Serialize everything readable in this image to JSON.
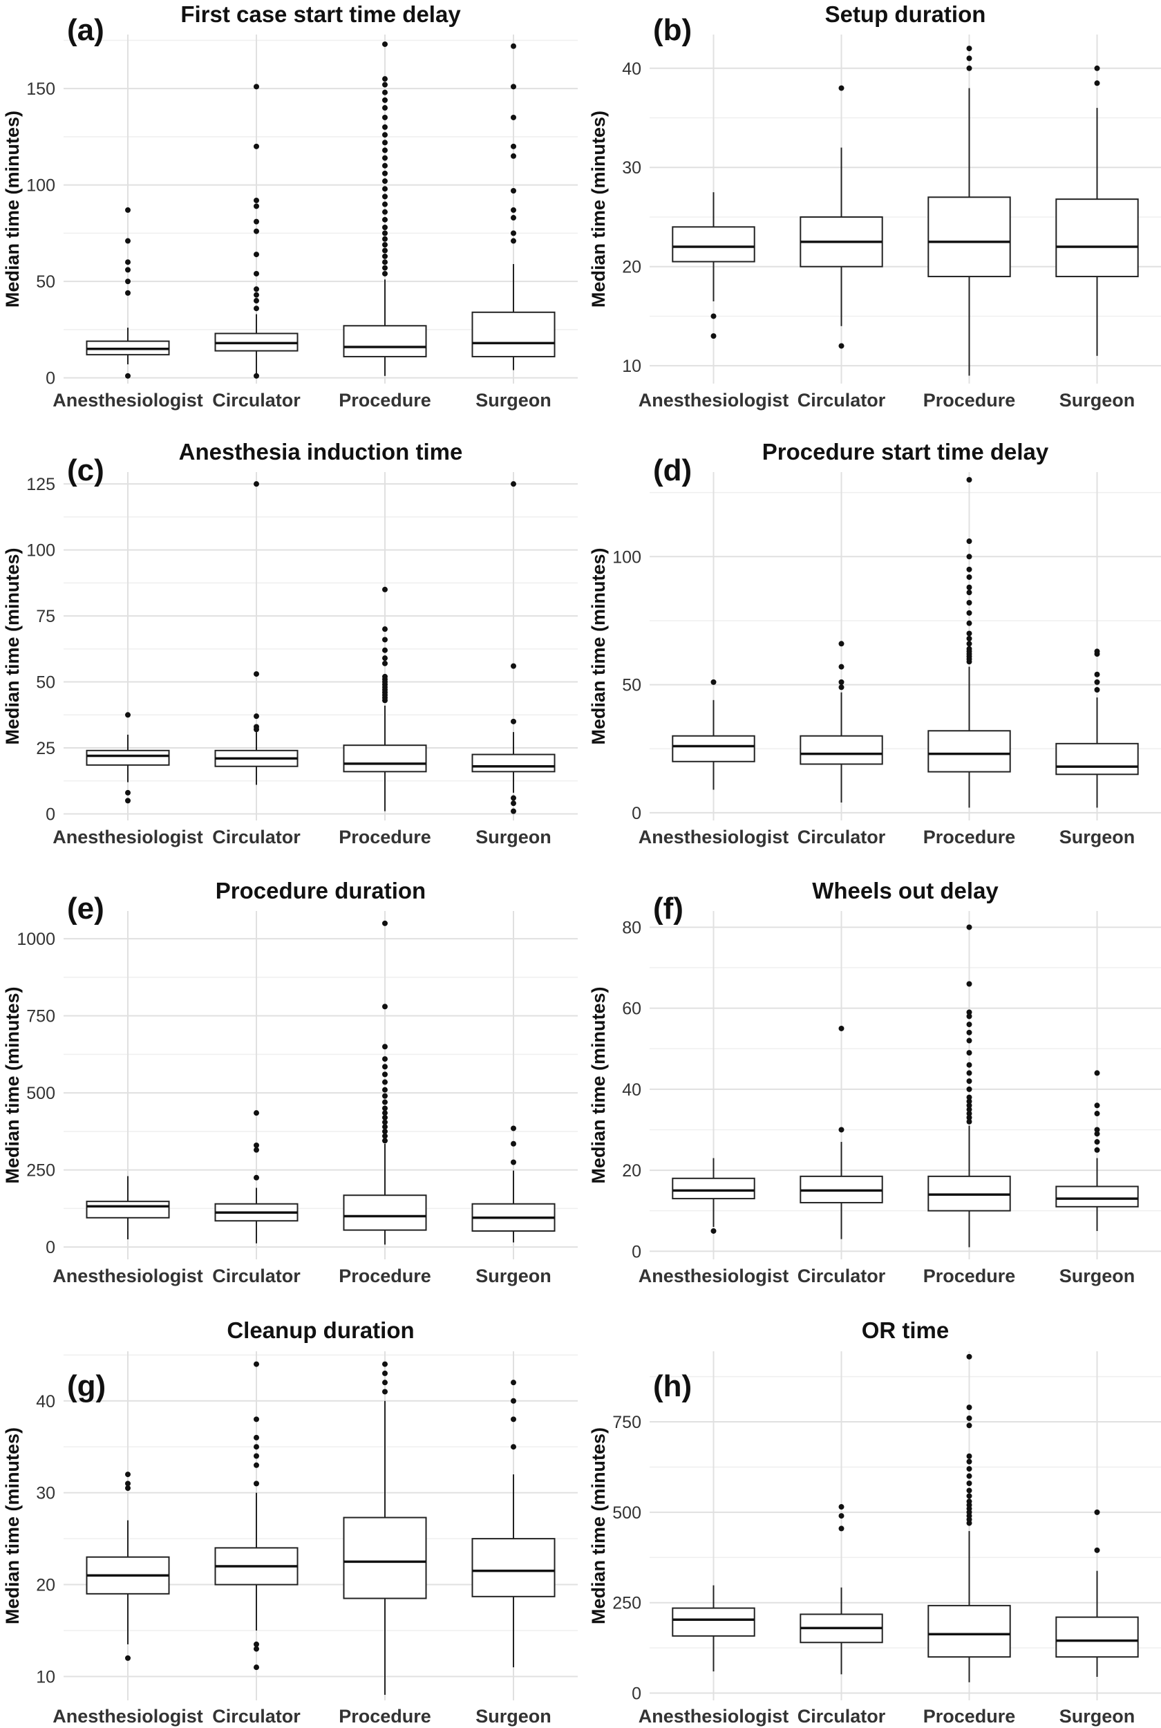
{
  "chart_data": [
    {
      "label": "(a)",
      "title": "First case start time delay",
      "type": "box",
      "ylabel": "Median time (minutes)",
      "ylim": [
        -3,
        178
      ],
      "yticks": [
        0,
        50,
        100,
        150
      ],
      "categories": [
        "Anesthesiologist",
        "Circulator",
        "Procedure",
        "Surgeon"
      ],
      "boxes": [
        {
          "name": "Anesthesiologist",
          "lower_whisker": 7,
          "q1": 12,
          "median": 15,
          "q3": 19,
          "upper_whisker": 26,
          "outliers": [
            1,
            44,
            50,
            56,
            60,
            71,
            87
          ]
        },
        {
          "name": "Circulator",
          "lower_whisker": 2,
          "q1": 14,
          "median": 18,
          "q3": 23,
          "upper_whisker": 33,
          "outliers": [
            1,
            36,
            40,
            43,
            46,
            54,
            64,
            76,
            81,
            89,
            92,
            120,
            151
          ]
        },
        {
          "name": "Procedure",
          "lower_whisker": 1,
          "q1": 11,
          "median": 16,
          "q3": 27,
          "upper_whisker": 51,
          "outliers": [
            54,
            57,
            60,
            63,
            66,
            69,
            72,
            75,
            78,
            82,
            86,
            90,
            94,
            98,
            102,
            106,
            110,
            114,
            118,
            122,
            126,
            130,
            135,
            140,
            144,
            148,
            152,
            155,
            173
          ]
        },
        {
          "name": "Surgeon",
          "lower_whisker": 4,
          "q1": 11,
          "median": 18,
          "q3": 34,
          "upper_whisker": 59,
          "outliers": [
            71,
            75,
            83,
            87,
            97,
            115,
            120,
            135,
            151,
            172
          ]
        }
      ]
    },
    {
      "label": "(b)",
      "title": "Setup duration",
      "type": "box",
      "ylabel": "Median time (minutes)",
      "ylim": [
        8.2,
        43.4
      ],
      "yticks": [
        10,
        20,
        30,
        40
      ],
      "categories": [
        "Anesthesiologist",
        "Circulator",
        "Procedure",
        "Surgeon"
      ],
      "boxes": [
        {
          "name": "Anesthesiologist",
          "lower_whisker": 16.5,
          "q1": 20.5,
          "median": 22,
          "q3": 24,
          "upper_whisker": 27.5,
          "outliers": [
            13,
            15
          ]
        },
        {
          "name": "Circulator",
          "lower_whisker": 14,
          "q1": 20,
          "median": 22.5,
          "q3": 25,
          "upper_whisker": 32,
          "outliers": [
            12,
            38
          ]
        },
        {
          "name": "Procedure",
          "lower_whisker": 9,
          "q1": 19,
          "median": 22.5,
          "q3": 27,
          "upper_whisker": 38,
          "outliers": [
            40,
            41,
            42
          ]
        },
        {
          "name": "Surgeon",
          "lower_whisker": 11,
          "q1": 19,
          "median": 22,
          "q3": 26.8,
          "upper_whisker": 36,
          "outliers": [
            38.5,
            40
          ]
        }
      ]
    },
    {
      "label": "(c)",
      "title": "Anesthesia induction time",
      "type": "box",
      "ylabel": "Median time (minutes)",
      "ylim": [
        -2.5,
        129.5
      ],
      "yticks": [
        0,
        25,
        50,
        75,
        100,
        125
      ],
      "categories": [
        "Anesthesiologist",
        "Circulator",
        "Procedure",
        "Surgeon"
      ],
      "boxes": [
        {
          "name": "Anesthesiologist",
          "lower_whisker": 12,
          "q1": 18.5,
          "median": 22,
          "q3": 24,
          "upper_whisker": 30,
          "outliers": [
            5,
            8,
            37.5
          ]
        },
        {
          "name": "Circulator",
          "lower_whisker": 11,
          "q1": 18,
          "median": 21,
          "q3": 24,
          "upper_whisker": 31,
          "outliers": [
            32,
            33,
            37,
            53,
            125
          ]
        },
        {
          "name": "Procedure",
          "lower_whisker": 1,
          "q1": 16,
          "median": 19,
          "q3": 26,
          "upper_whisker": 41,
          "outliers": [
            43,
            44,
            45,
            46,
            47,
            48,
            49,
            50,
            51,
            52,
            57,
            59,
            62,
            66,
            70,
            85
          ]
        },
        {
          "name": "Surgeon",
          "lower_whisker": 8,
          "q1": 16,
          "median": 18,
          "q3": 22.5,
          "upper_whisker": 31,
          "outliers": [
            1,
            4,
            6,
            35,
            56,
            125
          ]
        }
      ]
    },
    {
      "label": "(d)",
      "title": "Procedure start time delay",
      "type": "box",
      "ylabel": "Median time (minutes)",
      "ylim": [
        -3,
        133
      ],
      "yticks": [
        0,
        50,
        100
      ],
      "categories": [
        "Anesthesiologist",
        "Circulator",
        "Procedure",
        "Surgeon"
      ],
      "boxes": [
        {
          "name": "Anesthesiologist",
          "lower_whisker": 9,
          "q1": 20,
          "median": 26,
          "q3": 30,
          "upper_whisker": 44,
          "outliers": [
            51
          ]
        },
        {
          "name": "Circulator",
          "lower_whisker": 4,
          "q1": 19,
          "median": 23,
          "q3": 30,
          "upper_whisker": 47,
          "outliers": [
            49,
            51,
            57,
            66
          ]
        },
        {
          "name": "Procedure",
          "lower_whisker": 2,
          "q1": 16,
          "median": 23,
          "q3": 32,
          "upper_whisker": 57,
          "outliers": [
            59,
            60,
            61,
            62,
            63,
            64,
            66,
            68,
            70,
            74,
            78,
            82,
            86,
            88,
            92,
            95,
            100,
            106,
            130
          ]
        },
        {
          "name": "Surgeon",
          "lower_whisker": 2,
          "q1": 15,
          "median": 18,
          "q3": 27,
          "upper_whisker": 45,
          "outliers": [
            48,
            51,
            54,
            62,
            63
          ]
        }
      ]
    },
    {
      "label": "(e)",
      "title": "Procedure duration",
      "type": "box",
      "ylabel": "Median time (minutes)",
      "ylim": [
        -40,
        1090
      ],
      "yticks": [
        0,
        250,
        500,
        750,
        1000
      ],
      "categories": [
        "Anesthesiologist",
        "Circulator",
        "Procedure",
        "Surgeon"
      ],
      "boxes": [
        {
          "name": "Anesthesiologist",
          "lower_whisker": 25,
          "q1": 95,
          "median": 132,
          "q3": 148,
          "upper_whisker": 230,
          "outliers": []
        },
        {
          "name": "Circulator",
          "lower_whisker": 12,
          "q1": 85,
          "median": 112,
          "q3": 140,
          "upper_whisker": 192,
          "outliers": [
            225,
            315,
            330,
            435
          ]
        },
        {
          "name": "Procedure",
          "lower_whisker": 8,
          "q1": 55,
          "median": 100,
          "q3": 168,
          "upper_whisker": 335,
          "outliers": [
            345,
            360,
            375,
            390,
            405,
            420,
            435,
            450,
            470,
            490,
            510,
            535,
            560,
            585,
            610,
            650,
            780,
            1050
          ]
        },
        {
          "name": "Surgeon",
          "lower_whisker": 15,
          "q1": 52,
          "median": 95,
          "q3": 140,
          "upper_whisker": 248,
          "outliers": [
            275,
            335,
            385
          ]
        }
      ]
    },
    {
      "label": "(f)",
      "title": "Wheels out delay",
      "type": "box",
      "ylabel": "Median time (minutes)",
      "ylim": [
        -2,
        84
      ],
      "yticks": [
        0,
        20,
        40,
        60,
        80
      ],
      "categories": [
        "Anesthesiologist",
        "Circulator",
        "Procedure",
        "Surgeon"
      ],
      "boxes": [
        {
          "name": "Anesthesiologist",
          "lower_whisker": 6,
          "q1": 13,
          "median": 15,
          "q3": 18,
          "upper_whisker": 23,
          "outliers": [
            5
          ]
        },
        {
          "name": "Circulator",
          "lower_whisker": 3,
          "q1": 12,
          "median": 15,
          "q3": 18.5,
          "upper_whisker": 27,
          "outliers": [
            30,
            55
          ]
        },
        {
          "name": "Procedure",
          "lower_whisker": 1,
          "q1": 10,
          "median": 14,
          "q3": 18.5,
          "upper_whisker": 31,
          "outliers": [
            32,
            33,
            34,
            35,
            36,
            37,
            38,
            40,
            42,
            44,
            46,
            49,
            52,
            54,
            56,
            58,
            59,
            66,
            80
          ]
        },
        {
          "name": "Surgeon",
          "lower_whisker": 5,
          "q1": 11,
          "median": 13,
          "q3": 16,
          "upper_whisker": 23,
          "outliers": [
            25,
            27,
            29,
            30,
            34,
            36,
            44
          ]
        }
      ]
    },
    {
      "label": "(g)",
      "title": "Cleanup duration",
      "type": "box",
      "ylabel": "Median time (minutes)",
      "ylim": [
        7.4,
        45.4
      ],
      "yticks": [
        10,
        20,
        30,
        40
      ],
      "categories": [
        "Anesthesiologist",
        "Circulator",
        "Procedure",
        "Surgeon"
      ],
      "boxes": [
        {
          "name": "Anesthesiologist",
          "lower_whisker": 13.5,
          "q1": 19,
          "median": 21,
          "q3": 23,
          "upper_whisker": 27,
          "outliers": [
            12,
            30.5,
            31,
            32
          ]
        },
        {
          "name": "Circulator",
          "lower_whisker": 15,
          "q1": 20,
          "median": 22,
          "q3": 24,
          "upper_whisker": 30,
          "outliers": [
            11,
            13,
            13.5,
            31,
            33,
            34,
            35,
            36,
            38,
            44
          ]
        },
        {
          "name": "Procedure",
          "lower_whisker": 8,
          "q1": 18.5,
          "median": 22.5,
          "q3": 27.3,
          "upper_whisker": 40,
          "outliers": [
            41,
            42,
            43,
            44
          ]
        },
        {
          "name": "Surgeon",
          "lower_whisker": 11,
          "q1": 18.7,
          "median": 21.5,
          "q3": 25,
          "upper_whisker": 32,
          "outliers": [
            35,
            38,
            40,
            42
          ]
        }
      ]
    },
    {
      "label": "(h)",
      "title": "OR time",
      "type": "box",
      "ylabel": "Median time (minutes)",
      "ylim": [
        -20,
        945
      ],
      "yticks": [
        0,
        250,
        500,
        750
      ],
      "categories": [
        "Anesthesiologist",
        "Circulator",
        "Procedure",
        "Surgeon"
      ],
      "boxes": [
        {
          "name": "Anesthesiologist",
          "lower_whisker": 60,
          "q1": 158,
          "median": 203,
          "q3": 235,
          "upper_whisker": 298,
          "outliers": []
        },
        {
          "name": "Circulator",
          "lower_whisker": 52,
          "q1": 140,
          "median": 180,
          "q3": 218,
          "upper_whisker": 292,
          "outliers": [
            455,
            490,
            515
          ]
        },
        {
          "name": "Procedure",
          "lower_whisker": 30,
          "q1": 100,
          "median": 163,
          "q3": 242,
          "upper_whisker": 448,
          "outliers": [
            470,
            480,
            490,
            500,
            510,
            520,
            530,
            545,
            560,
            580,
            600,
            620,
            640,
            655,
            740,
            760,
            790,
            930
          ]
        },
        {
          "name": "Surgeon",
          "lower_whisker": 45,
          "q1": 100,
          "median": 145,
          "q3": 210,
          "upper_whisker": 338,
          "outliers": [
            395,
            500
          ]
        }
      ]
    }
  ]
}
